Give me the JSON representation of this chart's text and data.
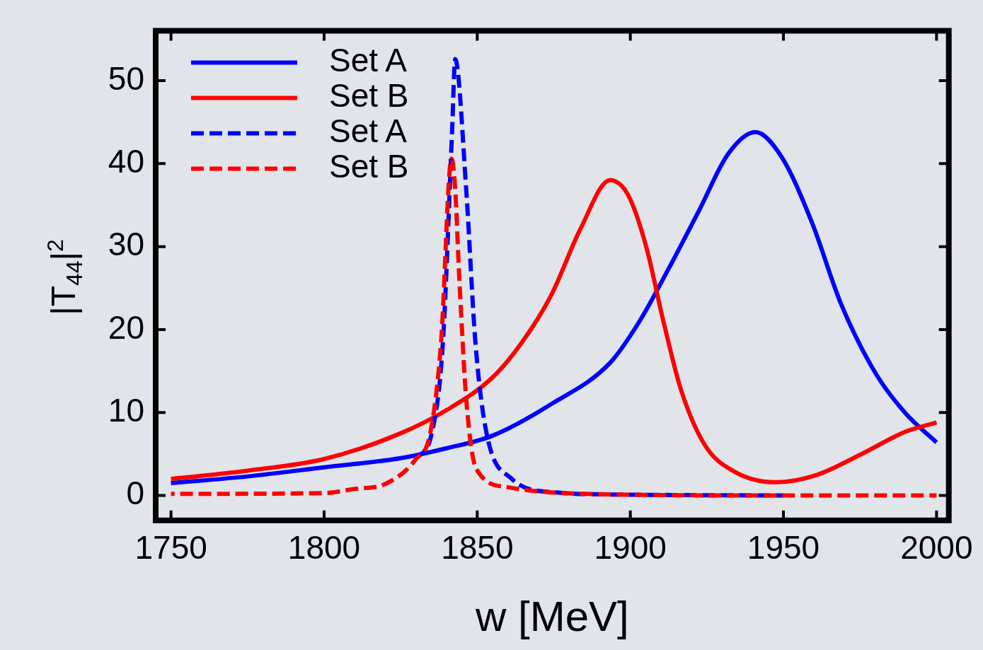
{
  "chart_data": {
    "type": "line",
    "xlabel": "w [MeV]",
    "ylabel": "|T$_{44}$|$^{2}$",
    "xlim": [
      1745,
      2004
    ],
    "ylim": [
      -3,
      56
    ],
    "xticks": [
      1750,
      1800,
      1850,
      1900,
      1950,
      2000
    ],
    "yticks": [
      0,
      10,
      20,
      30,
      40,
      50
    ],
    "grid": false,
    "legend": "top left",
    "marker": "none",
    "series": [
      {
        "name": "Set A",
        "color": "#0000ff",
        "line_style": "solid",
        "x": [
          1750,
          1775,
          1800,
          1825,
          1840,
          1854.9,
          1874.1,
          1893.4,
          1903,
          1912.6,
          1922.5,
          1932,
          1940.8,
          1949.4,
          1959.2,
          1968.8,
          1980.3,
          1989.9,
          2000
        ],
        "values": [
          1.5,
          2.3,
          3.4,
          4.5,
          5.7,
          7.2,
          11,
          16,
          21,
          27.4,
          34.4,
          41.2,
          43.8,
          40.8,
          33,
          23.1,
          14.6,
          9.9,
          6.4
        ]
      },
      {
        "name": "Set B",
        "color": "#ff0000",
        "line_style": "solid",
        "x": [
          1750,
          1775,
          1800,
          1825,
          1840,
          1854.9,
          1864.5,
          1874.1,
          1883.8,
          1893.4,
          1899.3,
          1905.1,
          1910.8,
          1916.5,
          1924.3,
          1933.9,
          1947.5,
          1961,
          1975.5,
          1989.9,
          2000
        ],
        "values": [
          2.0,
          3.0,
          4.4,
          7.5,
          10.3,
          14.2,
          18.4,
          24.1,
          32.2,
          38,
          36.2,
          30.1,
          21,
          12.8,
          6.1,
          2.9,
          1.6,
          2.5,
          5,
          7.7,
          8.8
        ]
      },
      {
        "name": "Set A",
        "color": "#0000ff",
        "line_style": "dashed",
        "x": [
          1830,
          1835.2,
          1838.8,
          1841.8,
          1842.8,
          1846.4,
          1849.4,
          1853,
          1861,
          1875,
          1900,
          1950
        ],
        "values": [
          4.4,
          7.6,
          18.5,
          44,
          52.6,
          36.9,
          18.5,
          7.6,
          2.1,
          0.4,
          0.1,
          0.0
        ]
      },
      {
        "name": "Set B",
        "color": "#ff0000",
        "line_style": "dashed",
        "x": [
          1750,
          1800,
          1810,
          1820,
          1830,
          1834.7,
          1838.2,
          1841.6,
          1842.8,
          1844.2,
          1846.5,
          1849.7,
          1860,
          1870,
          1900,
          1950,
          2000
        ],
        "values": [
          0.2,
          0.3,
          0.8,
          1.4,
          4.4,
          7.6,
          18.5,
          40.6,
          36.9,
          25.8,
          11.2,
          3.2,
          1.0,
          0.5,
          0.1,
          0.0,
          0.0
        ]
      }
    ]
  }
}
